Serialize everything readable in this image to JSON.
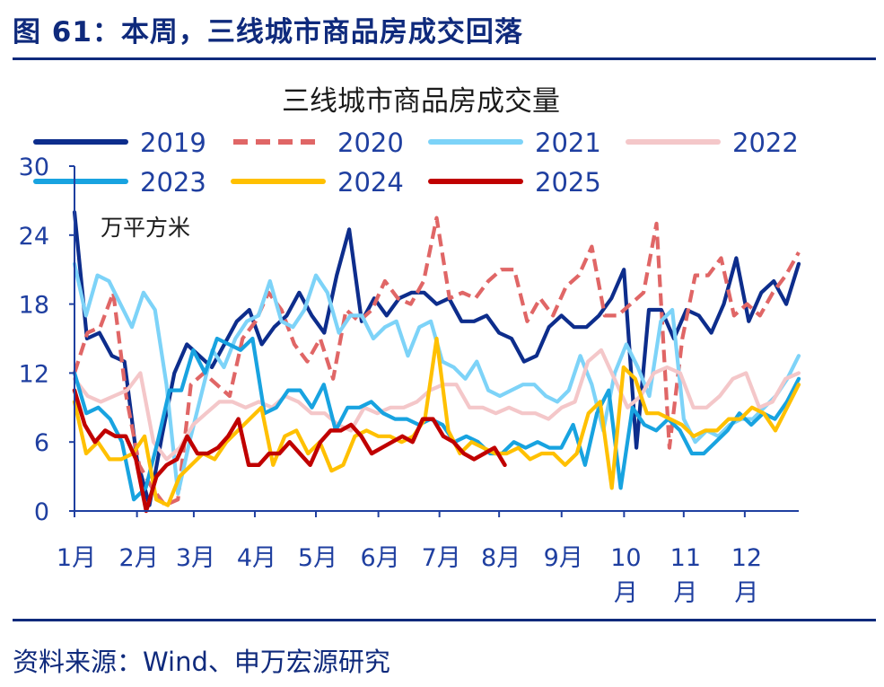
{
  "figure": {
    "title": "图 61：本周，三线城市商品房成交回落",
    "source": "资料来源：Wind、申万宏源研究"
  },
  "colors": {
    "brand": "#0f2a7c",
    "axis": "#1f3fa0",
    "s2019": "#0d2d8c",
    "s2020": "#e06666",
    "s2021": "#7dd3f8",
    "s2022": "#f4c7c9",
    "s2023": "#18a3e0",
    "s2024": "#ffc000",
    "s2025": "#c00000"
  },
  "chart_data": {
    "type": "line",
    "title": "三线城市商品房成交量",
    "unit_label": "万平方米",
    "xlabel": "",
    "ylabel": "万平方米",
    "ylim": [
      0,
      30
    ],
    "yticks": [
      "0",
      "6",
      "12",
      "18",
      "24",
      "30"
    ],
    "x_unit": "week",
    "x_range": [
      1,
      52
    ],
    "xticks": [
      {
        "week": 1,
        "lines": [
          "1月"
        ]
      },
      {
        "week": 5.4,
        "lines": [
          "2月"
        ]
      },
      {
        "week": 9.4,
        "lines": [
          "3月"
        ]
      },
      {
        "week": 13.7,
        "lines": [
          "4月"
        ]
      },
      {
        "week": 18,
        "lines": [
          "5月"
        ]
      },
      {
        "week": 22.4,
        "lines": [
          "6月"
        ]
      },
      {
        "week": 26.7,
        "lines": [
          "7月"
        ]
      },
      {
        "week": 30.9,
        "lines": [
          "8月"
        ]
      },
      {
        "week": 35.3,
        "lines": [
          "9月"
        ]
      },
      {
        "week": 39.7,
        "lines": [
          "10",
          "月"
        ]
      },
      {
        "week": 43.9,
        "lines": [
          "11",
          "月"
        ]
      },
      {
        "week": 48.2,
        "lines": [
          "12",
          "月"
        ]
      }
    ],
    "legend_placement": "top, two rows",
    "grid": false,
    "series": [
      {
        "name": "2019",
        "color": "#0d2d8c",
        "dash": "solid",
        "start_week": 1,
        "values": [
          26,
          15,
          15.5,
          13.5,
          13,
          4.5,
          0.5,
          6.5,
          12,
          14.5,
          13.5,
          12.5,
          14.5,
          16.5,
          17.5,
          14.5,
          16,
          17,
          19,
          17,
          15.5,
          20.5,
          24.5,
          16.5,
          18.5,
          17,
          18.5,
          19,
          19,
          18,
          18.5,
          16.5,
          16.5,
          17,
          15.5,
          15,
          13,
          13.5,
          16,
          17,
          16,
          16,
          17,
          18.5,
          21,
          5.5,
          17.5,
          17.5,
          15,
          17.5,
          17,
          15.5,
          18,
          22,
          16.5,
          19,
          20,
          18,
          21.5
        ]
      },
      {
        "name": "2020",
        "color": "#e06666",
        "dash": "dash",
        "start_week": 1,
        "values": [
          12,
          15.5,
          16,
          19,
          10,
          4,
          2,
          0.5,
          1,
          11,
          12,
          11,
          10,
          15,
          16.5,
          19,
          17.5,
          14.5,
          13,
          15,
          11.5,
          17.5,
          16.5,
          17.5,
          20,
          18.5,
          18,
          20,
          25.5,
          18.5,
          19,
          18.5,
          20,
          21,
          21,
          16.5,
          18.5,
          17,
          19.5,
          20.5,
          23,
          17,
          17,
          18,
          19,
          25,
          5.5,
          15,
          20.5,
          20.5,
          22,
          17,
          18,
          17,
          19,
          20.5,
          22.5
        ]
      },
      {
        "name": "2021",
        "color": "#7dd3f8",
        "dash": "solid",
        "start_week": 1,
        "values": [
          21.5,
          17,
          20.5,
          20,
          18,
          16,
          19,
          17.5,
          11,
          1.5,
          6,
          10,
          14,
          12.5,
          15,
          16.5,
          17,
          20,
          16.5,
          16,
          17.5,
          20.5,
          19,
          15.5,
          17,
          17,
          15,
          16,
          16.5,
          13.5,
          16,
          16.5,
          13,
          12.5,
          11.5,
          13,
          10.5,
          10,
          10.5,
          11,
          11,
          10,
          9.5,
          10.5,
          13.5,
          11,
          7,
          12,
          14.5,
          12.5,
          10,
          16.5,
          17.5,
          8,
          6,
          7,
          6.5,
          7.5,
          8,
          8,
          9,
          10,
          11.5,
          13.5
        ]
      },
      {
        "name": "2022",
        "color": "#f4c7c9",
        "dash": "solid",
        "start_week": 1,
        "values": [
          11.5,
          10,
          9.5,
          10,
          10.5,
          12,
          6,
          4.5,
          5.5,
          7.5,
          8.5,
          9.5,
          9.5,
          9,
          9.5,
          9,
          10,
          9.5,
          8.5,
          8.5,
          7.5,
          7,
          9,
          8.5,
          9,
          9,
          9.5,
          10.5,
          11,
          11,
          9,
          9,
          8.5,
          9,
          8.5,
          8.5,
          8,
          9,
          9.5,
          13,
          14,
          11.5,
          9,
          10,
          12,
          12.5,
          12,
          9,
          9,
          10,
          11.5,
          12,
          9,
          9.5,
          11.5,
          12
        ]
      },
      {
        "name": "2023",
        "color": "#18a3e0",
        "dash": "solid",
        "start_week": 1,
        "values": [
          12,
          8.5,
          9,
          8,
          6,
          1,
          2,
          6,
          10.5,
          10.5,
          14,
          12,
          15,
          14.5,
          14,
          15,
          8.5,
          9,
          10.5,
          10.5,
          9,
          11,
          7,
          9,
          9,
          9.5,
          8.5,
          8,
          8,
          7.5,
          8,
          7.5,
          6,
          6.5,
          6,
          5,
          5,
          6,
          5.5,
          6,
          5.5,
          5.5,
          7.5,
          4,
          8.5,
          10.5,
          2,
          9,
          7.5,
          7,
          8,
          7,
          5,
          5,
          6,
          7,
          8.5,
          7.5,
          8.5,
          8,
          9.5,
          11.5
        ]
      },
      {
        "name": "2024",
        "color": "#ffc000",
        "dash": "solid",
        "start_week": 1,
        "values": [
          9.5,
          5,
          6,
          4.5,
          4.5,
          5,
          6.5,
          1,
          0.5,
          3,
          4,
          5,
          4.5,
          6,
          7,
          8,
          9,
          4,
          6.5,
          7,
          5,
          6,
          3.5,
          4,
          6.5,
          7,
          6.5,
          6.5,
          6,
          6.5,
          8,
          15,
          7,
          5,
          6,
          5.5,
          5,
          5,
          5.5,
          4.5,
          5,
          5,
          4,
          5,
          8.5,
          9.5,
          2,
          12.5,
          11.5,
          8.5,
          8.5,
          8,
          7.5,
          6.5,
          7,
          7,
          8,
          8,
          9,
          8.5,
          7,
          9,
          11
        ]
      },
      {
        "name": "2025",
        "color": "#c00000",
        "dash": "solid",
        "start_week": 1,
        "values": [
          10.5,
          7.5,
          6,
          7,
          6.5,
          6.5,
          4.5,
          0,
          3,
          4,
          4.5,
          6.5,
          5,
          5,
          5.5,
          6.5,
          8,
          4,
          4,
          5,
          5,
          6,
          5,
          4,
          6,
          7,
          7,
          7.5,
          6.5,
          5,
          5.5,
          6,
          6.5,
          6,
          8,
          8,
          6.5,
          6,
          5,
          4.5,
          5,
          5.5,
          4
        ]
      }
    ]
  }
}
